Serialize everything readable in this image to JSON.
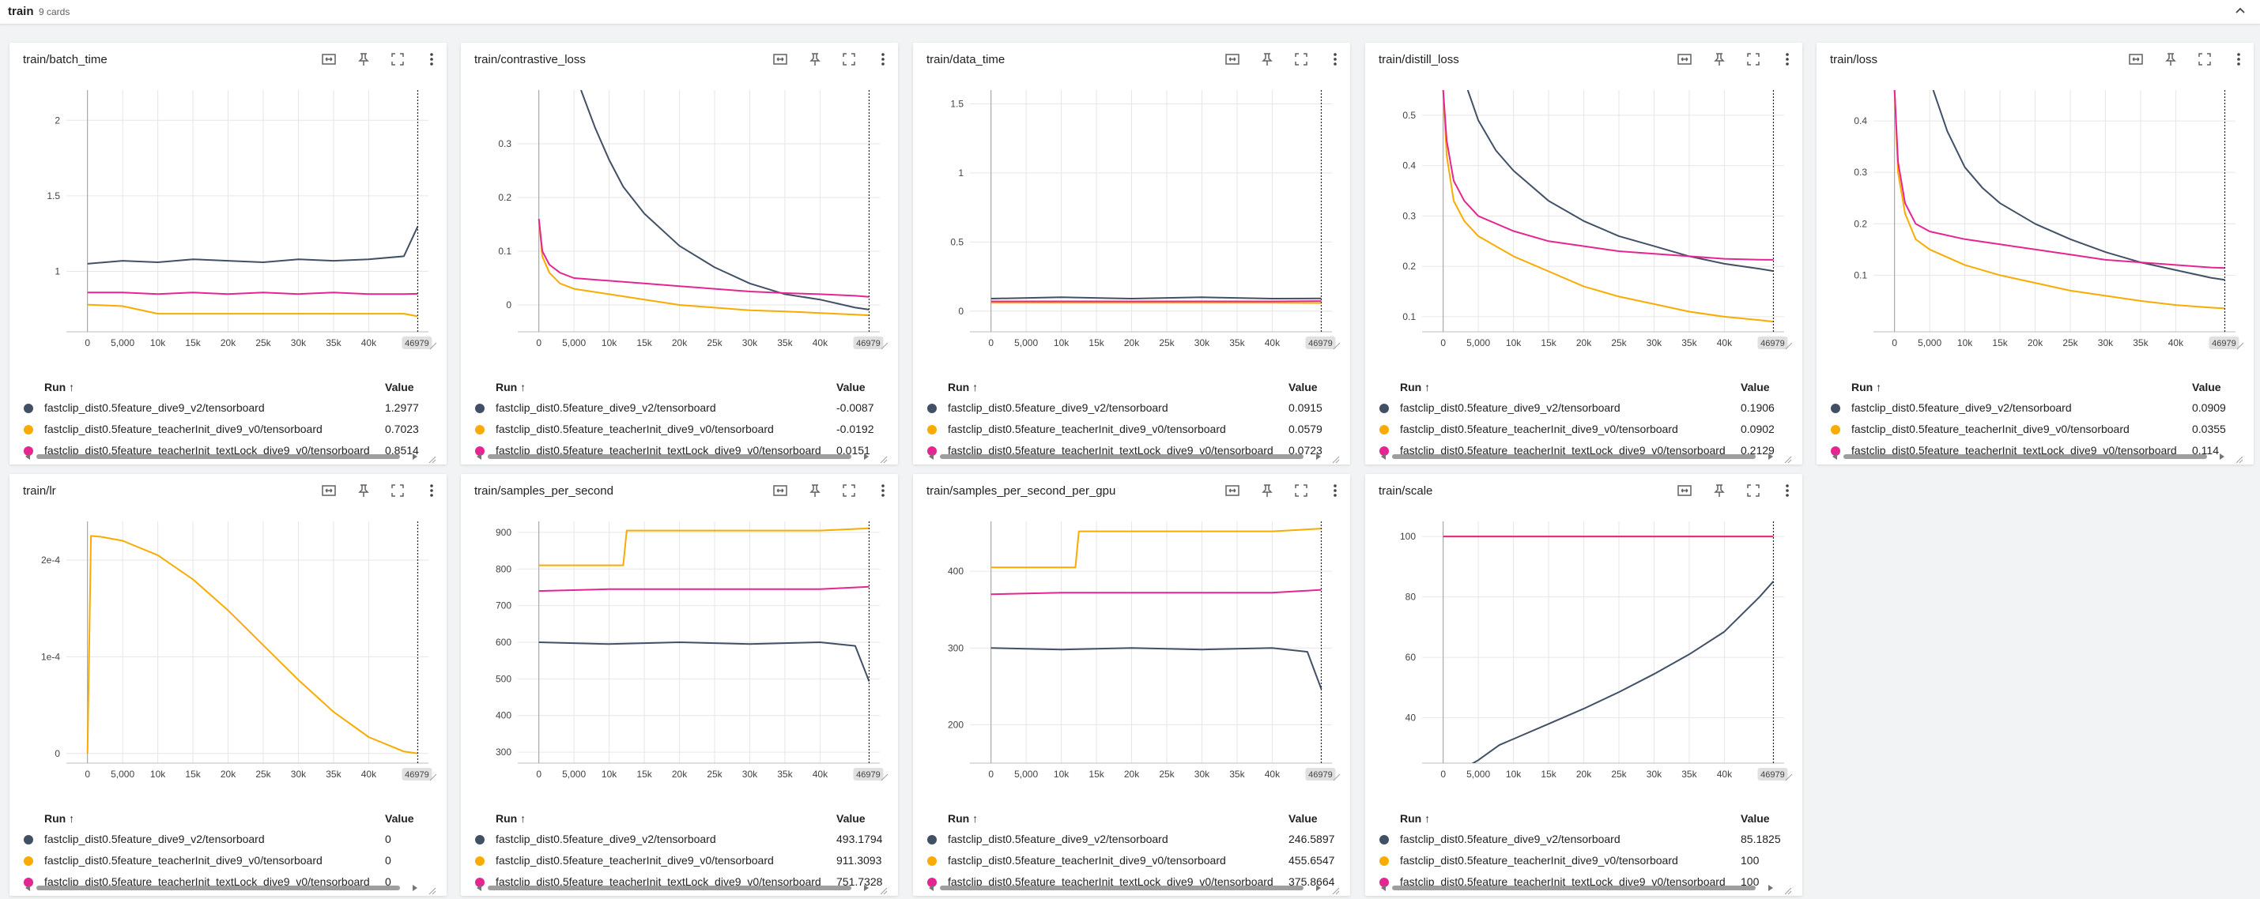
{
  "group": {
    "title": "train",
    "count_label": "9 cards"
  },
  "runs": [
    {
      "name": "fastclip_dist0.5feature_dive9_v2/tensorboard",
      "color": "#425066"
    },
    {
      "name": "fastclip_dist0.5feature_teacherInit_dive9_v0/tensorboard",
      "color": "#f9ab00"
    },
    {
      "name": "fastclip_dist0.5feature_teacherInit_textLock_dive9_v0/tensorboard",
      "color": "#e52592"
    }
  ],
  "legend_headers": {
    "run": "Run ↑",
    "value": "Value"
  },
  "icons": [
    "fit-domain-icon",
    "pin-icon",
    "fullscreen-icon",
    "more-vert-icon"
  ],
  "cards": [
    {
      "title": "train/batch_time",
      "values": [
        "1.2977",
        "0.7023",
        "0.8514"
      ]
    },
    {
      "title": "train/contrastive_loss",
      "values": [
        "-0.0087",
        "-0.0192",
        "0.0151"
      ]
    },
    {
      "title": "train/data_time",
      "values": [
        "0.0915",
        "0.0579",
        "0.0723"
      ]
    },
    {
      "title": "train/distill_loss",
      "values": [
        "0.1906",
        "0.0902",
        "0.2129"
      ]
    },
    {
      "title": "train/loss",
      "values": [
        "0.0909",
        "0.0355",
        "0.114"
      ]
    },
    {
      "title": "train/lr",
      "values": [
        "0",
        "0",
        "0"
      ]
    },
    {
      "title": "train/samples_per_second",
      "values": [
        "493.1794",
        "911.3093",
        "751.7328"
      ]
    },
    {
      "title": "train/samples_per_second_per_gpu",
      "values": [
        "246.5897",
        "455.6547",
        "375.8664"
      ]
    },
    {
      "title": "train/scale",
      "values": [
        "85.1825",
        "100",
        "100"
      ]
    }
  ],
  "chart_data": [
    {
      "type": "line",
      "title": "train/batch_time",
      "x_ticks": [
        "0",
        "5,000",
        "10k",
        "15k",
        "20k",
        "25k",
        "30k",
        "35k",
        "40k"
      ],
      "y_ticks": [
        "1",
        "1.5",
        "2"
      ],
      "ylim": [
        0.6,
        2.2
      ],
      "xlim": [
        -3000,
        48500
      ],
      "step_badge": "46979",
      "series": [
        {
          "name": "fastclip_dist0.5feature_dive9_v2/tensorboard",
          "x": [
            0,
            5000,
            10000,
            15000,
            20000,
            25000,
            30000,
            35000,
            40000,
            45000,
            46979
          ],
          "y": [
            1.05,
            1.07,
            1.06,
            1.08,
            1.07,
            1.06,
            1.08,
            1.07,
            1.08,
            1.1,
            1.2977
          ]
        },
        {
          "name": "fastclip_dist0.5feature_teacherInit_dive9_v0/tensorboard",
          "x": [
            0,
            5000,
            10000,
            15000,
            20000,
            25000,
            30000,
            35000,
            40000,
            45000,
            46979
          ],
          "y": [
            0.78,
            0.77,
            0.72,
            0.72,
            0.72,
            0.72,
            0.72,
            0.72,
            0.72,
            0.72,
            0.7023
          ]
        },
        {
          "name": "fastclip_dist0.5feature_teacherInit_textLock_dive9_v0/tensorboard",
          "x": [
            0,
            5000,
            10000,
            15000,
            20000,
            25000,
            30000,
            35000,
            40000,
            45000,
            46979
          ],
          "y": [
            0.86,
            0.86,
            0.85,
            0.86,
            0.85,
            0.86,
            0.85,
            0.86,
            0.85,
            0.85,
            0.8514
          ]
        }
      ]
    },
    {
      "type": "line",
      "title": "train/contrastive_loss",
      "x_ticks": [
        "0",
        "5,000",
        "10k",
        "15k",
        "20k",
        "25k",
        "30k",
        "35k",
        "40k"
      ],
      "y_ticks": [
        "0",
        "0.1",
        "0.2",
        "0.3"
      ],
      "ylim": [
        -0.05,
        0.4
      ],
      "xlim": [
        -3000,
        48500
      ],
      "step_badge": "46979",
      "series": [
        {
          "name": "fastclip_dist0.5feature_dive9_v2/tensorboard",
          "x": [
            6000,
            8000,
            10000,
            12000,
            15000,
            20000,
            25000,
            30000,
            35000,
            40000,
            45000,
            46979
          ],
          "y": [
            0.4,
            0.33,
            0.27,
            0.22,
            0.17,
            0.11,
            0.07,
            0.04,
            0.02,
            0.01,
            -0.005,
            -0.0087
          ]
        },
        {
          "name": "fastclip_dist0.5feature_teacherInit_dive9_v0/tensorboard",
          "x": [
            0,
            500,
            1500,
            3000,
            5000,
            10000,
            15000,
            20000,
            25000,
            30000,
            35000,
            40000,
            45000,
            46979
          ],
          "y": [
            0.16,
            0.09,
            0.06,
            0.04,
            0.03,
            0.02,
            0.01,
            0.0,
            -0.005,
            -0.01,
            -0.012,
            -0.015,
            -0.018,
            -0.0192
          ]
        },
        {
          "name": "fastclip_dist0.5feature_teacherInit_textLock_dive9_v0/tensorboard",
          "x": [
            0,
            500,
            1500,
            3000,
            5000,
            10000,
            15000,
            20000,
            25000,
            30000,
            35000,
            40000,
            45000,
            46979
          ],
          "y": [
            0.16,
            0.1,
            0.075,
            0.06,
            0.05,
            0.045,
            0.04,
            0.035,
            0.03,
            0.025,
            0.022,
            0.02,
            0.017,
            0.0151
          ]
        }
      ]
    },
    {
      "type": "line",
      "title": "train/data_time",
      "x_ticks": [
        "0",
        "5,000",
        "10k",
        "15k",
        "20k",
        "25k",
        "30k",
        "35k",
        "40k"
      ],
      "y_ticks": [
        "0",
        "0.5",
        "1",
        "1.5"
      ],
      "ylim": [
        -0.15,
        1.6
      ],
      "xlim": [
        -3000,
        48500
      ],
      "step_badge": "46979",
      "series": [
        {
          "name": "fastclip_dist0.5feature_dive9_v2/tensorboard",
          "x": [
            0,
            10000,
            20000,
            30000,
            40000,
            46979
          ],
          "y": [
            0.09,
            0.1,
            0.09,
            0.1,
            0.09,
            0.0915
          ]
        },
        {
          "name": "fastclip_dist0.5feature_teacherInit_dive9_v0/tensorboard",
          "x": [
            0,
            10000,
            20000,
            30000,
            40000,
            46979
          ],
          "y": [
            0.06,
            0.06,
            0.06,
            0.06,
            0.06,
            0.0579
          ]
        },
        {
          "name": "fastclip_dist0.5feature_teacherInit_textLock_dive9_v0/tensorboard",
          "x": [
            0,
            10000,
            20000,
            30000,
            40000,
            46979
          ],
          "y": [
            0.07,
            0.07,
            0.07,
            0.07,
            0.07,
            0.0723
          ]
        }
      ]
    },
    {
      "type": "line",
      "title": "train/distill_loss",
      "x_ticks": [
        "0",
        "5,000",
        "10k",
        "15k",
        "20k",
        "25k",
        "30k",
        "35k",
        "40k"
      ],
      "y_ticks": [
        "0.1",
        "0.2",
        "0.3",
        "0.4",
        "0.5"
      ],
      "ylim": [
        0.07,
        0.55
      ],
      "xlim": [
        -3000,
        48500
      ],
      "step_badge": "46979",
      "series": [
        {
          "name": "fastclip_dist0.5feature_dive9_v2/tensorboard",
          "x": [
            3500,
            5000,
            7500,
            10000,
            15000,
            20000,
            25000,
            30000,
            35000,
            40000,
            45000,
            46979
          ],
          "y": [
            0.55,
            0.49,
            0.43,
            0.39,
            0.33,
            0.29,
            0.26,
            0.24,
            0.22,
            0.205,
            0.195,
            0.1906
          ]
        },
        {
          "name": "fastclip_dist0.5feature_teacherInit_dive9_v0/tensorboard",
          "x": [
            0,
            500,
            1500,
            3000,
            5000,
            10000,
            15000,
            20000,
            25000,
            30000,
            35000,
            40000,
            45000,
            46979
          ],
          "y": [
            0.55,
            0.42,
            0.33,
            0.29,
            0.26,
            0.22,
            0.19,
            0.16,
            0.14,
            0.125,
            0.11,
            0.1,
            0.093,
            0.0902
          ]
        },
        {
          "name": "fastclip_dist0.5feature_teacherInit_textLock_dive9_v0/tensorboard",
          "x": [
            0,
            500,
            1500,
            3000,
            5000,
            10000,
            15000,
            20000,
            25000,
            30000,
            35000,
            40000,
            45000,
            46979
          ],
          "y": [
            0.55,
            0.45,
            0.37,
            0.33,
            0.3,
            0.27,
            0.25,
            0.24,
            0.23,
            0.225,
            0.22,
            0.215,
            0.213,
            0.2129
          ]
        }
      ]
    },
    {
      "type": "line",
      "title": "train/loss",
      "x_ticks": [
        "0",
        "5,000",
        "10k",
        "15k",
        "20k",
        "25k",
        "30k",
        "35k",
        "40k"
      ],
      "y_ticks": [
        "0.1",
        "0.2",
        "0.3",
        "0.4"
      ],
      "ylim": [
        -0.01,
        0.46
      ],
      "xlim": [
        -3000,
        48500
      ],
      "step_badge": "46979",
      "series": [
        {
          "name": "fastclip_dist0.5feature_dive9_v2/tensorboard",
          "x": [
            5500,
            7500,
            10000,
            12500,
            15000,
            20000,
            25000,
            30000,
            35000,
            40000,
            45000,
            46979
          ],
          "y": [
            0.46,
            0.38,
            0.31,
            0.27,
            0.24,
            0.2,
            0.17,
            0.145,
            0.125,
            0.11,
            0.095,
            0.0909
          ]
        },
        {
          "name": "fastclip_dist0.5feature_teacherInit_dive9_v0/tensorboard",
          "x": [
            0,
            500,
            1500,
            3000,
            5000,
            10000,
            15000,
            20000,
            25000,
            30000,
            35000,
            40000,
            45000,
            46979
          ],
          "y": [
            0.46,
            0.3,
            0.22,
            0.17,
            0.15,
            0.12,
            0.1,
            0.085,
            0.07,
            0.06,
            0.05,
            0.042,
            0.037,
            0.0355
          ]
        },
        {
          "name": "fastclip_dist0.5feature_teacherInit_textLock_dive9_v0/tensorboard",
          "x": [
            0,
            500,
            1500,
            3000,
            5000,
            10000,
            15000,
            20000,
            25000,
            30000,
            35000,
            40000,
            45000,
            46979
          ],
          "y": [
            0.46,
            0.32,
            0.24,
            0.2,
            0.185,
            0.17,
            0.16,
            0.15,
            0.14,
            0.13,
            0.125,
            0.12,
            0.115,
            0.114
          ]
        }
      ]
    },
    {
      "type": "line",
      "title": "train/lr",
      "x_ticks": [
        "0",
        "5,000",
        "10k",
        "15k",
        "20k",
        "25k",
        "30k",
        "35k",
        "40k"
      ],
      "y_ticks": [
        "0",
        "1e-4",
        "2e-4"
      ],
      "ylim": [
        -1e-05,
        0.00024
      ],
      "xlim": [
        -3000,
        48500
      ],
      "step_badge": "46979",
      "series": [
        {
          "name": "fastclip_dist0.5feature_teacherInit_dive9_v0/tensorboard",
          "x": [
            0,
            500,
            2000,
            5000,
            10000,
            15000,
            20000,
            25000,
            30000,
            35000,
            40000,
            45000,
            46979
          ],
          "y": [
            0,
            0.000225,
            0.000224,
            0.00022,
            0.000205,
            0.00018,
            0.000148,
            0.000112,
            7.6e-05,
            4.3e-05,
            1.7e-05,
            2e-06,
            0
          ]
        }
      ]
    },
    {
      "type": "line",
      "title": "train/samples_per_second",
      "x_ticks": [
        "0",
        "5,000",
        "10k",
        "15k",
        "20k",
        "25k",
        "30k",
        "35k",
        "40k"
      ],
      "y_ticks": [
        "300",
        "400",
        "500",
        "600",
        "700",
        "800",
        "900"
      ],
      "ylim": [
        270,
        930
      ],
      "xlim": [
        -3000,
        48500
      ],
      "step_badge": "46979",
      "series": [
        {
          "name": "fastclip_dist0.5feature_dive9_v2/tensorboard",
          "x": [
            0,
            10000,
            20000,
            30000,
            40000,
            45000,
            46979
          ],
          "y": [
            600,
            595,
            600,
            595,
            600,
            590,
            493.1794
          ]
        },
        {
          "name": "fastclip_dist0.5feature_teacherInit_dive9_v0/tensorboard",
          "x": [
            0,
            12000,
            12500,
            20000,
            30000,
            40000,
            46979
          ],
          "y": [
            810,
            810,
            905,
            905,
            905,
            905,
            911.3093
          ]
        },
        {
          "name": "fastclip_dist0.5feature_teacherInit_textLock_dive9_v0/tensorboard",
          "x": [
            0,
            10000,
            20000,
            30000,
            40000,
            46979
          ],
          "y": [
            740,
            745,
            745,
            745,
            745,
            751.7328
          ]
        }
      ]
    },
    {
      "type": "line",
      "title": "train/samples_per_second_per_gpu",
      "x_ticks": [
        "0",
        "5,000",
        "10k",
        "15k",
        "20k",
        "25k",
        "30k",
        "35k",
        "40k"
      ],
      "y_ticks": [
        "200",
        "300",
        "400"
      ],
      "ylim": [
        150,
        465
      ],
      "xlim": [
        -3000,
        48500
      ],
      "step_badge": "46979",
      "series": [
        {
          "name": "fastclip_dist0.5feature_dive9_v2/tensorboard",
          "x": [
            0,
            10000,
            20000,
            30000,
            40000,
            45000,
            46979
          ],
          "y": [
            300,
            298,
            300,
            298,
            300,
            295,
            246.5897
          ]
        },
        {
          "name": "fastclip_dist0.5feature_teacherInit_dive9_v0/tensorboard",
          "x": [
            0,
            12000,
            12500,
            20000,
            30000,
            40000,
            46979
          ],
          "y": [
            405,
            405,
            452,
            452,
            452,
            452,
            455.6547
          ]
        },
        {
          "name": "fastclip_dist0.5feature_teacherInit_textLock_dive9_v0/tensorboard",
          "x": [
            0,
            10000,
            20000,
            30000,
            40000,
            46979
          ],
          "y": [
            370,
            372,
            372,
            372,
            372,
            375.8664
          ]
        }
      ]
    },
    {
      "type": "line",
      "title": "train/scale",
      "x_ticks": [
        "0",
        "5,000",
        "10k",
        "15k",
        "20k",
        "25k",
        "30k",
        "35k",
        "40k"
      ],
      "y_ticks": [
        "40",
        "60",
        "80",
        "100"
      ],
      "ylim": [
        25,
        105
      ],
      "xlim": [
        -3000,
        48500
      ],
      "step_badge": "46979",
      "series": [
        {
          "name": "fastclip_dist0.5feature_dive9_v2/tensorboard",
          "x": [
            0,
            2000,
            5000,
            8000,
            10500,
            15000,
            20000,
            25000,
            30000,
            35000,
            40000,
            45000,
            46979
          ],
          "y": [
            20,
            22,
            26,
            31,
            33.5,
            38,
            43,
            48.5,
            54.5,
            61,
            68.5,
            80,
            85.1825
          ]
        },
        {
          "name": "fastclip_dist0.5feature_teacherInit_dive9_v0/tensorboard",
          "x": [
            0,
            46979
          ],
          "y": [
            100,
            100
          ]
        },
        {
          "name": "fastclip_dist0.5feature_teacherInit_textLock_dive9_v0/tensorboard",
          "x": [
            0,
            46979
          ],
          "y": [
            100,
            100
          ]
        }
      ]
    }
  ]
}
